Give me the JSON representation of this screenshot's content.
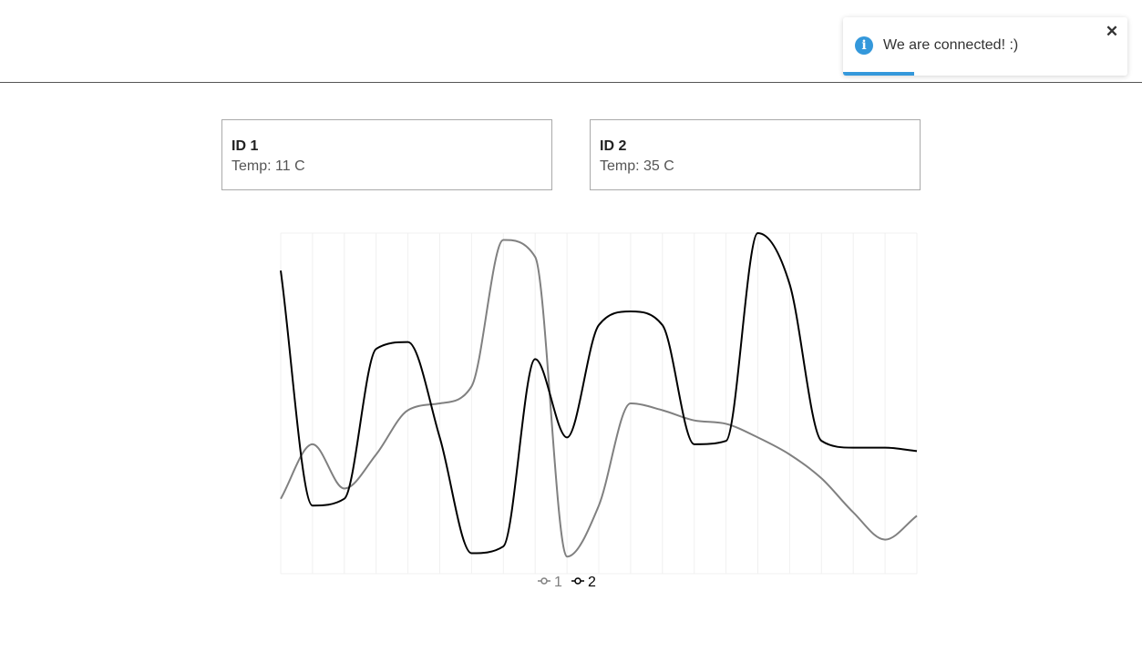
{
  "toast": {
    "message": "We are connected! :)",
    "icon": "info-icon",
    "close_label": "✕",
    "accent_color": "#3498db",
    "progress_fraction": 0.25
  },
  "sensors": [
    {
      "title": "ID 1",
      "temp": "Temp: 11 C"
    },
    {
      "title": "ID 2",
      "temp": "Temp: 35 C"
    }
  ],
  "chart_data": {
    "type": "line",
    "title": "",
    "xlabel": "",
    "ylabel": "",
    "grid": true,
    "legend_position": "bottom-center",
    "x": [
      0,
      1,
      2,
      3,
      4,
      5,
      6,
      7,
      8,
      9,
      10,
      11,
      12,
      13,
      14,
      15,
      16,
      17,
      18,
      19,
      20
    ],
    "ylim": [
      0,
      100
    ],
    "series": [
      {
        "name": "1",
        "color": "#808080",
        "values": [
          22,
          38,
          25,
          35,
          48,
          50,
          55,
          98,
          93,
          5,
          20,
          50,
          48,
          45,
          44,
          40,
          35,
          28,
          18,
          10,
          17
        ]
      },
      {
        "name": "2",
        "color": "#000000",
        "values": [
          89,
          20,
          22,
          66,
          68,
          40,
          6,
          8,
          63,
          40,
          73,
          77,
          73,
          38,
          39,
          100,
          85,
          39,
          37,
          37,
          36
        ]
      }
    ]
  }
}
